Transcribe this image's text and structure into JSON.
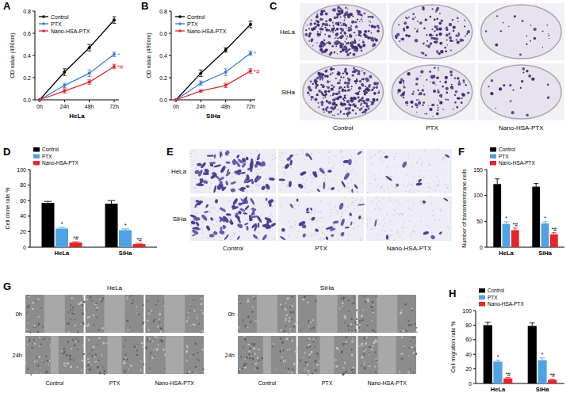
{
  "chart_data": [
    {
      "panel": "A",
      "type": "line",
      "categories": [
        "0h",
        "24h",
        "48h",
        "72h"
      ],
      "x_label": "HeLa",
      "y_label": "OD value (490nm)",
      "ylim": [
        0,
        0.8
      ],
      "yticks": [
        {
          "value": 0,
          "label": "0.0"
        },
        0.2,
        0.4,
        0.6,
        0.8
      ],
      "marker": "circle",
      "legend": "top-left",
      "series": [
        {
          "name": "Control",
          "color": "#000000",
          "values": [
            0,
            0.25,
            0.47,
            0.72
          ],
          "errors": [
            0,
            0.03,
            0.03,
            0.03
          ]
        },
        {
          "name": "PTX",
          "color": "#3b7ddd",
          "values": [
            0,
            0.13,
            0.24,
            0.41
          ],
          "errors": [
            0,
            0.02,
            0.03,
            0.02
          ],
          "annotations": [
            null,
            null,
            null,
            "*"
          ]
        },
        {
          "name": "Nano-HSA-PTX",
          "color": "#e4262c",
          "values": [
            0,
            0.08,
            0.16,
            0.3
          ],
          "errors": [
            0,
            0.02,
            0.02,
            0.02
          ],
          "annotations": [
            null,
            null,
            null,
            "*#"
          ]
        }
      ]
    },
    {
      "panel": "B",
      "type": "line",
      "categories": [
        "0h",
        "24h",
        "48h",
        "72h"
      ],
      "x_label": "SiHa",
      "y_label": "OD value (490nm)",
      "ylim": [
        0,
        0.8
      ],
      "yticks": [
        {
          "value": 0,
          "label": "0.0"
        },
        0.2,
        0.4,
        0.6,
        0.8
      ],
      "marker": "circle",
      "legend": "top-left",
      "series": [
        {
          "name": "Control",
          "color": "#000000",
          "values": [
            0,
            0.24,
            0.45,
            0.68
          ],
          "errors": [
            0,
            0.03,
            0.02,
            0.03
          ]
        },
        {
          "name": "PTX",
          "color": "#3b7ddd",
          "values": [
            0,
            0.15,
            0.25,
            0.42
          ],
          "errors": [
            0,
            0.02,
            0.03,
            0.02
          ],
          "annotations": [
            null,
            null,
            null,
            "*"
          ]
        },
        {
          "name": "Nano-HSA-PTX",
          "color": "#e4262c",
          "values": [
            0,
            0.08,
            0.13,
            0.26
          ],
          "errors": [
            0,
            0.01,
            0.02,
            0.02
          ],
          "annotations": [
            null,
            null,
            null,
            "*#"
          ]
        }
      ]
    },
    {
      "panel": "D",
      "type": "bar",
      "categories": [
        "HeLa",
        "SiHa"
      ],
      "y_label": "Cell clone rate %",
      "ylim": [
        0,
        100
      ],
      "yticks": [
        0,
        20,
        40,
        60,
        80,
        100
      ],
      "legend": "top",
      "series": [
        {
          "name": "Control",
          "color": "#000000",
          "values": [
            57,
            56
          ],
          "errors": [
            2,
            4
          ]
        },
        {
          "name": "PTX",
          "color": "#4fa3e3",
          "values": [
            24,
            22
          ],
          "errors": [
            1.5,
            1.5
          ],
          "annotations": [
            "*",
            "*"
          ]
        },
        {
          "name": "Nano-HSA-PTX",
          "color": "#e4262c",
          "values": [
            6,
            4
          ],
          "errors": [
            1,
            1
          ],
          "annotations": [
            "*#",
            "*#"
          ]
        }
      ]
    },
    {
      "panel": "F",
      "type": "bar",
      "categories": [
        "HeLa",
        "SiHa"
      ],
      "y_label": "Number of transmembrane cells",
      "ylim": [
        0,
        150
      ],
      "yticks": [
        0,
        50,
        100,
        150
      ],
      "legend": "top",
      "series": [
        {
          "name": "Control",
          "color": "#000000",
          "values": [
            122,
            117
          ],
          "errors": [
            10,
            6
          ]
        },
        {
          "name": "PTX",
          "color": "#4fa3e3",
          "values": [
            45,
            46
          ],
          "errors": [
            4,
            3
          ],
          "annotations": [
            "*",
            "*"
          ]
        },
        {
          "name": "Nano-HSA-PTX",
          "color": "#e4262c",
          "values": [
            33,
            25
          ],
          "errors": [
            4,
            3
          ],
          "annotations": [
            "*#",
            "*#"
          ]
        }
      ]
    },
    {
      "panel": "H",
      "type": "bar",
      "categories": [
        "HeLa",
        "SiHa"
      ],
      "y_label": "Cell migration rate %",
      "ylim": [
        0,
        100
      ],
      "yticks": [
        0,
        20,
        40,
        60,
        80,
        100
      ],
      "legend": "top",
      "series": [
        {
          "name": "Control",
          "color": "#000000",
          "values": [
            80,
            79
          ],
          "errors": [
            4,
            4
          ]
        },
        {
          "name": "PTX",
          "color": "#4fa3e3",
          "values": [
            30,
            32
          ],
          "errors": [
            2,
            3
          ],
          "annotations": [
            "*",
            "*"
          ]
        },
        {
          "name": "Nano-HSA-PTX",
          "color": "#e4262c",
          "values": [
            7,
            5
          ],
          "errors": [
            1,
            1
          ],
          "annotations": [
            "*#",
            "*#"
          ]
        }
      ]
    }
  ],
  "image_panels": [
    {
      "panel": "C",
      "type": "colony",
      "rows": [
        "HeLa",
        "SiHa"
      ],
      "columns": [
        "Control",
        "PTX",
        "Nano-HSA-PTX"
      ]
    },
    {
      "panel": "E",
      "type": "transwell",
      "rows": [
        "HeLa",
        "SiHa"
      ],
      "columns": [
        "Control",
        "PTX",
        "Nano-HSA-PTX"
      ]
    },
    {
      "panel": "G",
      "type": "wound",
      "groups": [
        {
          "title": "HeLa",
          "rows": [
            "0h",
            "24h"
          ],
          "columns": [
            "Control",
            "PTX",
            "Nano-HSA-PTX"
          ]
        },
        {
          "title": "SiHa",
          "rows": [
            "0h",
            "24h"
          ],
          "columns": [
            "Control",
            "PTX",
            "Nano-HSA-PTX"
          ]
        }
      ]
    }
  ]
}
